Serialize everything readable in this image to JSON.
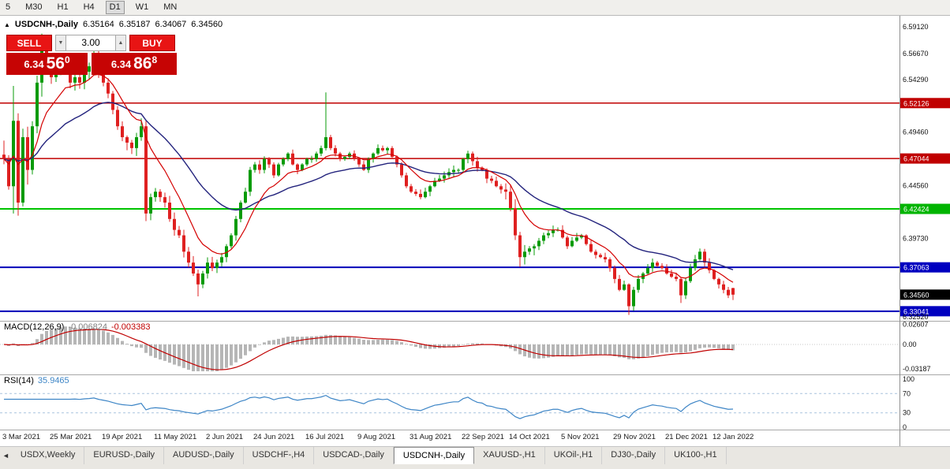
{
  "toolbar": {
    "timeframes": [
      {
        "label": "5"
      },
      {
        "label": "M30"
      },
      {
        "label": "H1"
      },
      {
        "label": "H4"
      },
      {
        "label": "D1"
      },
      {
        "label": "W1"
      },
      {
        "label": "MN"
      }
    ],
    "active": "D1"
  },
  "chart": {
    "title": {
      "marker": "▲",
      "symbol": "USDCNH-,Daily",
      "open": "6.35164",
      "high": "6.35187",
      "low": "6.34067",
      "close": "6.34560"
    },
    "trade_panel": {
      "sell_label": "SELL",
      "buy_label": "BUY",
      "volume": "3.00",
      "spin_down_icon": "▼",
      "spin_up_icon": "▲",
      "sell_price": {
        "base": "6.34",
        "pips": "56",
        "point": "0"
      },
      "buy_price": {
        "base": "6.34",
        "pips": "86",
        "point": "8"
      }
    }
  },
  "chart_data": {
    "type": "candlestick",
    "symbol": "USDCNH",
    "timeframe": "Daily",
    "price_range": [
      6.3245,
      6.597
    ],
    "open_first": 6.474,
    "closes": [
      6.47,
      6.445,
      6.505,
      6.43,
      6.49,
      6.46,
      6.5,
      6.54,
      6.575,
      6.56,
      6.545,
      6.55,
      6.555,
      6.56,
      6.54,
      6.545,
      6.54,
      6.55,
      6.555,
      6.565,
      6.55,
      6.54,
      6.53,
      6.515,
      6.5,
      6.49,
      6.485,
      6.48,
      6.49,
      6.5,
      6.42,
      6.435,
      6.44,
      6.435,
      6.43,
      6.415,
      6.405,
      6.4,
      6.385,
      6.375,
      6.365,
      6.355,
      6.365,
      6.375,
      6.37,
      6.375,
      6.38,
      6.39,
      6.4,
      6.415,
      6.43,
      6.44,
      6.46,
      6.465,
      6.46,
      6.47,
      6.465,
      6.455,
      6.465,
      6.47,
      6.475,
      6.465,
      6.46,
      6.465,
      6.47,
      6.47,
      6.475,
      6.48,
      6.49,
      6.48,
      6.475,
      6.47,
      6.472,
      6.475,
      6.47,
      6.465,
      6.46,
      6.47,
      6.475,
      6.48,
      6.478,
      6.48,
      6.472,
      6.465,
      6.455,
      6.445,
      6.44,
      6.438,
      6.435,
      6.44,
      6.445,
      6.45,
      6.452,
      6.455,
      6.458,
      6.46,
      6.46,
      6.47,
      6.475,
      6.468,
      6.462,
      6.46,
      6.452,
      6.45,
      6.445,
      6.442,
      6.44,
      6.425,
      6.4,
      6.38,
      6.385,
      6.388,
      6.39,
      6.395,
      6.4,
      6.402,
      6.405,
      6.405,
      6.398,
      6.39,
      6.395,
      6.398,
      6.4,
      6.392,
      6.385,
      6.382,
      6.38,
      6.378,
      6.37,
      6.36,
      6.35,
      6.355,
      6.335,
      6.35,
      6.36,
      6.365,
      6.37,
      6.375,
      6.372,
      6.37,
      6.365,
      6.362,
      6.36,
      6.345,
      6.358,
      6.37,
      6.378,
      6.385,
      6.375,
      6.368,
      6.36,
      6.355,
      6.35,
      6.345,
      6.3456
    ],
    "overrides": {
      "2": {
        "h": 6.537,
        "l": 6.42
      },
      "3": {
        "l": 6.418
      },
      "8": {
        "h": 6.585
      },
      "19": {
        "h": 6.581
      },
      "30": {
        "l": 6.413
      },
      "41": {
        "l": 6.344
      },
      "68": {
        "h": 6.531
      },
      "109": {
        "l": 6.371
      },
      "132": {
        "l": 6.327
      },
      "143": {
        "l": 6.338
      },
      "154": {
        "o": 6.35164,
        "h": 6.35187,
        "l": 6.34067,
        "c": 6.3456
      }
    },
    "levels": [
      {
        "price": 6.52126,
        "color": "#c00000",
        "width": 1.5
      },
      {
        "price": 6.47044,
        "color": "#c00000",
        "width": 1.5
      },
      {
        "price": 6.42424,
        "color": "#00c400",
        "width": 2
      },
      {
        "price": 6.37063,
        "color": "#0000b8",
        "width": 2
      },
      {
        "price": 6.33041,
        "color": "#0000b8",
        "width": 2
      }
    ],
    "current_price": 6.3456,
    "axis_ticks": [
      {
        "label": "6.59120",
        "price": 6.5912,
        "type": "tick"
      },
      {
        "label": "6.56670",
        "price": 6.5667,
        "type": "tick"
      },
      {
        "label": "6.54290",
        "price": 6.5429,
        "type": "tick"
      },
      {
        "label": "6.52126",
        "price": 6.52126,
        "type": "level",
        "color": "#c00000"
      },
      {
        "label": "6.49460",
        "price": 6.4946,
        "type": "tick"
      },
      {
        "label": "6.47044",
        "price": 6.47044,
        "type": "level",
        "color": "#c00000"
      },
      {
        "label": "6.44560",
        "price": 6.4456,
        "type": "tick"
      },
      {
        "label": "6.42424",
        "price": 6.42424,
        "type": "level",
        "color": "#00b400"
      },
      {
        "label": "6.39730",
        "price": 6.3973,
        "type": "tick"
      },
      {
        "label": "6.37063",
        "price": 6.37063,
        "type": "level",
        "color": "#0000c0"
      },
      {
        "label": "6.34560",
        "price": 6.3456,
        "type": "current",
        "color": "#000000"
      },
      {
        "label": "6.33041",
        "price": 6.33041,
        "type": "level",
        "color": "#0000c0"
      },
      {
        "label": "6.32520",
        "price": 6.3252,
        "type": "tick"
      }
    ],
    "date_labels": [
      {
        "label": "3 Mar 2021",
        "index": 0
      },
      {
        "label": "25 Mar 2021",
        "index": 10
      },
      {
        "label": "19 Apr 2021",
        "index": 21
      },
      {
        "label": "11 May 2021",
        "index": 32
      },
      {
        "label": "2 Jun 2021",
        "index": 43
      },
      {
        "label": "24 Jun 2021",
        "index": 53
      },
      {
        "label": "16 Jul 2021",
        "index": 64
      },
      {
        "label": "9 Aug 2021",
        "index": 75
      },
      {
        "label": "31 Aug 2021",
        "index": 86
      },
      {
        "label": "22 Sep 2021",
        "index": 97
      },
      {
        "label": "14 Oct 2021",
        "index": 107
      },
      {
        "label": "5 Nov 2021",
        "index": 118
      },
      {
        "label": "29 Nov 2021",
        "index": 129
      },
      {
        "label": "21 Dec 2021",
        "index": 140
      },
      {
        "label": "12 Jan 2022",
        "index": 150
      }
    ],
    "ma": {
      "fast_period": 10,
      "fast_color": "#d40000",
      "slow_period": 30,
      "slow_color": "#23237d"
    },
    "indicators": {
      "macd": {
        "title": "MACD(12,26,9)",
        "value_main": "-0.006824",
        "value_signal": "-0.003383",
        "fast": 12,
        "slow": 26,
        "signal": 9,
        "bar_color": "#b6b6b6",
        "signal_color": "#c00000",
        "axis": [
          {
            "label": "0.02607",
            "value": 0.02607
          },
          {
            "label": "0.00",
            "value": 0
          },
          {
            "label": "-0.03187",
            "value": -0.03187
          }
        ]
      },
      "rsi": {
        "title": "RSI(14)",
        "value": "35.9465",
        "period": 14,
        "line_color": "#3d85c6",
        "levels": [
          70,
          30
        ],
        "axis": [
          {
            "label": "100",
            "value": 100
          },
          {
            "label": "70",
            "value": 70
          },
          {
            "label": "30",
            "value": 30
          },
          {
            "label": "0",
            "value": 0
          }
        ]
      }
    }
  },
  "tabbar": {
    "scroll_icon": "◄",
    "active": "USDCNH-,Daily",
    "tabs": [
      {
        "label": "USDX,Weekly"
      },
      {
        "label": "EURUSD-,Daily"
      },
      {
        "label": "AUDUSD-,Daily"
      },
      {
        "label": "USDCHF-,H4"
      },
      {
        "label": "USDCAD-,Daily"
      },
      {
        "label": "USDCNH-,Daily"
      },
      {
        "label": "XAUUSD-,H1"
      },
      {
        "label": "UKOil-,H1"
      },
      {
        "label": "DJ30-,Daily"
      },
      {
        "label": "UK100-,H1"
      }
    ]
  }
}
